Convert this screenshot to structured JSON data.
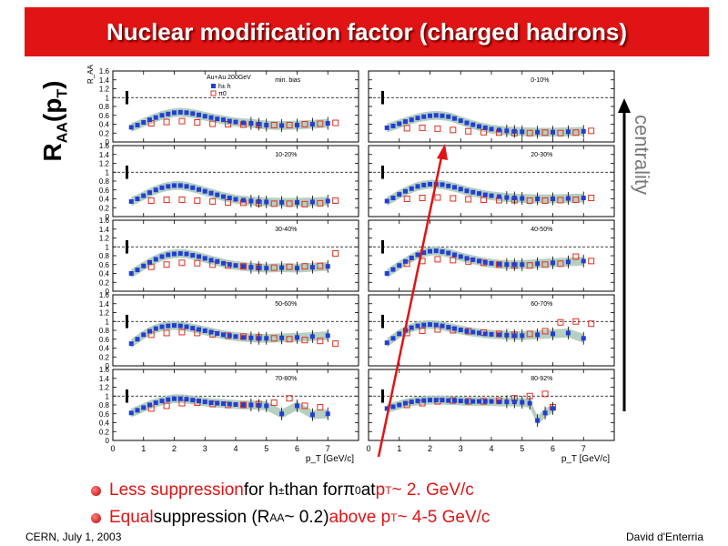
{
  "title": "Nuclear modification factor (charged hadrons)",
  "ylabel_main": {
    "base": "R",
    "sub1": "AA",
    "mid": "(p",
    "sub2": "T",
    "end": ")"
  },
  "centrality_label": "centrality",
  "bullets": {
    "b1": {
      "red1": "Less suppression",
      "t1": " for h",
      "sup": "±",
      "t2": " than for ",
      "pi": "π",
      "pisup": "0",
      "t3": " at ",
      "red2": "p",
      "red2sub": "T",
      "red3": " ~ 2. GeV/c"
    },
    "b2": {
      "red1": "Equal",
      "t1": " suppression (R",
      "sub": "AA",
      "t2": "~ 0.2) ",
      "red2": "above p",
      "red2sub": "T",
      "red3": " ~ 4-5 GeV/c"
    }
  },
  "footer": {
    "left": "CERN, July 1, 2003",
    "right": "David d'Enterria"
  },
  "colors": {
    "title_bg": "#e01414",
    "charged_hadrons": "#1f3fd6",
    "pi0": "#e03020",
    "syst_band": "#a9c7b5",
    "arrow": "#e01414"
  },
  "chart_data": {
    "type": "scatter",
    "panel_ylabel": "R_AA",
    "legend": {
      "system": "Au+Au 200GeV",
      "series1": "h±",
      "series1_suffix": " h",
      "series2": "π0"
    },
    "xlabel": "p_T [GeV/c]",
    "xlim": [
      0,
      8
    ],
    "ylim": [
      0,
      1.6
    ],
    "x_ticks": [
      "0",
      "1",
      "2",
      "3",
      "4",
      "5",
      "6",
      "7"
    ],
    "y_ticks": [
      "0",
      "0.2",
      "0.4",
      "0.6",
      "0.8",
      "1",
      "1.2",
      "1.4",
      "1.6"
    ],
    "panels": [
      {
        "label": "min. bias",
        "h": {
          "x": [
            0.6,
            0.8,
            1.0,
            1.2,
            1.4,
            1.6,
            1.8,
            2.0,
            2.2,
            2.4,
            2.6,
            2.8,
            3.0,
            3.2,
            3.4,
            3.6,
            3.8,
            4.0,
            4.25,
            4.5,
            4.75,
            5.0,
            5.5,
            6.0,
            6.5,
            7.0
          ],
          "y": [
            0.33,
            0.38,
            0.44,
            0.5,
            0.55,
            0.6,
            0.63,
            0.66,
            0.67,
            0.66,
            0.64,
            0.61,
            0.58,
            0.55,
            0.52,
            0.5,
            0.47,
            0.45,
            0.43,
            0.42,
            0.4,
            0.38,
            0.37,
            0.38,
            0.4,
            0.42
          ]
        },
        "pi0": {
          "x": [
            1.25,
            1.75,
            2.25,
            2.75,
            3.25,
            3.75,
            4.25,
            4.75,
            5.25,
            5.75,
            6.25,
            6.75,
            7.25
          ],
          "y": [
            0.42,
            0.45,
            0.47,
            0.44,
            0.41,
            0.4,
            0.39,
            0.38,
            0.38,
            0.38,
            0.4,
            0.41,
            0.43
          ]
        }
      },
      {
        "label": "0-10%",
        "h": {
          "x": [
            0.6,
            0.8,
            1.0,
            1.2,
            1.4,
            1.6,
            1.8,
            2.0,
            2.2,
            2.4,
            2.6,
            2.8,
            3.0,
            3.2,
            3.4,
            3.6,
            3.8,
            4.0,
            4.25,
            4.5,
            4.75,
            5.0,
            5.5,
            6.0,
            6.5,
            7.0
          ],
          "y": [
            0.32,
            0.36,
            0.41,
            0.46,
            0.5,
            0.54,
            0.57,
            0.59,
            0.6,
            0.59,
            0.57,
            0.53,
            0.48,
            0.43,
            0.39,
            0.35,
            0.32,
            0.29,
            0.27,
            0.25,
            0.24,
            0.23,
            0.22,
            0.22,
            0.23,
            0.24
          ]
        },
        "pi0": {
          "x": [
            1.25,
            1.75,
            2.25,
            2.75,
            3.25,
            3.75,
            4.25,
            4.75,
            5.25,
            5.75,
            6.25,
            6.75,
            7.25
          ],
          "y": [
            0.31,
            0.32,
            0.3,
            0.27,
            0.24,
            0.22,
            0.21,
            0.2,
            0.2,
            0.21,
            0.2,
            0.21,
            0.25
          ]
        }
      },
      {
        "label": "10-20%",
        "h": {
          "x": [
            0.6,
            0.8,
            1.0,
            1.2,
            1.4,
            1.6,
            1.8,
            2.0,
            2.2,
            2.4,
            2.6,
            2.8,
            3.0,
            3.2,
            3.4,
            3.6,
            3.8,
            4.0,
            4.25,
            4.5,
            4.75,
            5.0,
            5.5,
            6.0,
            6.5,
            7.0
          ],
          "y": [
            0.34,
            0.4,
            0.47,
            0.54,
            0.6,
            0.65,
            0.68,
            0.7,
            0.7,
            0.68,
            0.65,
            0.61,
            0.57,
            0.53,
            0.49,
            0.45,
            0.42,
            0.39,
            0.37,
            0.35,
            0.34,
            0.33,
            0.32,
            0.32,
            0.33,
            0.35
          ]
        },
        "pi0": {
          "x": [
            1.25,
            1.75,
            2.25,
            2.75,
            3.25,
            3.75,
            4.25,
            4.75,
            5.25,
            5.75,
            6.25,
            6.75,
            7.25
          ],
          "y": [
            0.36,
            0.38,
            0.38,
            0.36,
            0.34,
            0.32,
            0.31,
            0.3,
            0.29,
            0.29,
            0.28,
            0.3,
            0.36
          ]
        }
      },
      {
        "label": "20-30%",
        "h": {
          "x": [
            0.6,
            0.8,
            1.0,
            1.2,
            1.4,
            1.6,
            1.8,
            2.0,
            2.2,
            2.4,
            2.6,
            2.8,
            3.0,
            3.2,
            3.4,
            3.6,
            3.8,
            4.0,
            4.25,
            4.5,
            4.75,
            5.0,
            5.5,
            6.0,
            6.5,
            7.0
          ],
          "y": [
            0.35,
            0.42,
            0.5,
            0.57,
            0.63,
            0.68,
            0.71,
            0.73,
            0.73,
            0.72,
            0.69,
            0.66,
            0.62,
            0.58,
            0.55,
            0.52,
            0.49,
            0.47,
            0.45,
            0.43,
            0.42,
            0.41,
            0.4,
            0.4,
            0.41,
            0.42
          ]
        },
        "pi0": {
          "x": [
            1.25,
            1.75,
            2.25,
            2.75,
            3.25,
            3.75,
            4.25,
            4.75,
            5.25,
            5.75,
            6.25,
            6.75,
            7.25
          ],
          "y": [
            0.4,
            0.42,
            0.43,
            0.41,
            0.39,
            0.38,
            0.37,
            0.37,
            0.36,
            0.36,
            0.37,
            0.38,
            0.42
          ]
        }
      },
      {
        "label": "30-40%",
        "h": {
          "x": [
            0.6,
            0.8,
            1.0,
            1.2,
            1.4,
            1.6,
            1.8,
            2.0,
            2.2,
            2.4,
            2.6,
            2.8,
            3.0,
            3.2,
            3.4,
            3.6,
            3.8,
            4.0,
            4.25,
            4.5,
            4.75,
            5.0,
            5.5,
            6.0,
            6.5,
            7.0
          ],
          "y": [
            0.4,
            0.48,
            0.57,
            0.65,
            0.72,
            0.78,
            0.82,
            0.84,
            0.85,
            0.84,
            0.81,
            0.78,
            0.74,
            0.7,
            0.67,
            0.63,
            0.6,
            0.58,
            0.56,
            0.54,
            0.53,
            0.52,
            0.53,
            0.52,
            0.54,
            0.56
          ]
        },
        "pi0": {
          "x": [
            1.25,
            1.75,
            2.25,
            2.75,
            3.25,
            3.75,
            4.25,
            4.75,
            5.25,
            5.75,
            6.25,
            6.75,
            7.25
          ],
          "y": [
            0.55,
            0.6,
            0.64,
            0.63,
            0.6,
            0.58,
            0.56,
            0.54,
            0.53,
            0.55,
            0.56,
            0.57,
            0.85
          ]
        }
      },
      {
        "label": "40-50%",
        "h": {
          "x": [
            0.6,
            0.8,
            1.0,
            1.2,
            1.4,
            1.6,
            1.8,
            2.0,
            2.2,
            2.4,
            2.6,
            2.8,
            3.0,
            3.2,
            3.4,
            3.6,
            3.8,
            4.0,
            4.25,
            4.5,
            4.75,
            5.0,
            5.5,
            6.0,
            6.5,
            7.0
          ],
          "y": [
            0.4,
            0.49,
            0.58,
            0.67,
            0.75,
            0.82,
            0.87,
            0.9,
            0.91,
            0.89,
            0.86,
            0.82,
            0.78,
            0.74,
            0.71,
            0.68,
            0.65,
            0.63,
            0.61,
            0.6,
            0.6,
            0.6,
            0.62,
            0.64,
            0.66,
            0.68
          ]
        },
        "pi0": {
          "x": [
            1.25,
            1.75,
            2.25,
            2.75,
            3.25,
            3.75,
            4.25,
            4.75,
            5.25,
            5.75,
            6.25,
            6.75,
            7.25
          ],
          "y": [
            0.62,
            0.68,
            0.72,
            0.7,
            0.67,
            0.64,
            0.6,
            0.58,
            0.58,
            0.6,
            0.62,
            0.78,
            0.68
          ]
        }
      },
      {
        "label": "50-60%",
        "h": {
          "x": [
            0.6,
            0.8,
            1.0,
            1.2,
            1.4,
            1.6,
            1.8,
            2.0,
            2.2,
            2.4,
            2.6,
            2.8,
            3.0,
            3.2,
            3.4,
            3.6,
            3.8,
            4.0,
            4.25,
            4.5,
            4.75,
            5.0,
            5.5,
            6.0,
            6.5,
            7.0
          ],
          "y": [
            0.5,
            0.6,
            0.7,
            0.78,
            0.84,
            0.88,
            0.9,
            0.91,
            0.9,
            0.88,
            0.85,
            0.82,
            0.79,
            0.76,
            0.73,
            0.7,
            0.68,
            0.66,
            0.64,
            0.63,
            0.62,
            0.62,
            0.63,
            0.64,
            0.66,
            0.68
          ]
        },
        "pi0": {
          "x": [
            1.25,
            1.75,
            2.25,
            2.75,
            3.25,
            3.75,
            4.25,
            4.75,
            5.25,
            5.75,
            6.25,
            6.75,
            7.25
          ],
          "y": [
            0.7,
            0.74,
            0.76,
            0.74,
            0.71,
            0.68,
            0.66,
            0.64,
            0.62,
            0.6,
            0.58,
            0.56,
            0.5
          ]
        }
      },
      {
        "label": "60-70%",
        "h": {
          "x": [
            0.6,
            0.8,
            1.0,
            1.2,
            1.4,
            1.6,
            1.8,
            2.0,
            2.2,
            2.4,
            2.6,
            2.8,
            3.0,
            3.2,
            3.4,
            3.6,
            3.8,
            4.0,
            4.25,
            4.5,
            4.75,
            5.0,
            5.5,
            6.0,
            6.5,
            7.0
          ],
          "y": [
            0.52,
            0.62,
            0.72,
            0.8,
            0.86,
            0.9,
            0.92,
            0.93,
            0.92,
            0.9,
            0.87,
            0.84,
            0.81,
            0.78,
            0.76,
            0.74,
            0.72,
            0.71,
            0.7,
            0.69,
            0.68,
            0.68,
            0.7,
            0.72,
            0.74,
            0.62
          ]
        },
        "pi0": {
          "x": [
            1.25,
            1.75,
            2.25,
            2.75,
            3.25,
            3.75,
            4.25,
            4.75,
            5.25,
            5.75,
            6.25,
            6.75,
            7.25
          ],
          "y": [
            0.74,
            0.79,
            0.82,
            0.8,
            0.78,
            0.75,
            0.72,
            0.7,
            0.72,
            0.78,
            0.98,
            1.0,
            0.95
          ]
        }
      },
      {
        "label": "70-80%",
        "h": {
          "x": [
            0.6,
            0.8,
            1.0,
            1.2,
            1.4,
            1.6,
            1.8,
            2.0,
            2.2,
            2.4,
            2.6,
            2.8,
            3.0,
            3.2,
            3.4,
            3.6,
            3.8,
            4.0,
            4.25,
            4.5,
            4.75,
            5.0,
            5.5,
            6.0,
            6.5,
            7.0
          ],
          "y": [
            0.62,
            0.68,
            0.74,
            0.8,
            0.85,
            0.89,
            0.92,
            0.94,
            0.94,
            0.93,
            0.91,
            0.89,
            0.87,
            0.85,
            0.84,
            0.83,
            0.82,
            0.81,
            0.8,
            0.8,
            0.79,
            0.78,
            0.6,
            0.78,
            0.58,
            0.6
          ]
        },
        "pi0": {
          "x": [
            1.25,
            1.75,
            2.25,
            2.75,
            3.25,
            3.75,
            4.25,
            4.75,
            5.25,
            5.75,
            6.25,
            6.75
          ],
          "y": [
            0.72,
            0.78,
            0.84,
            0.85,
            0.82,
            0.8,
            0.8,
            0.82,
            0.85,
            0.95,
            0.78,
            0.75
          ]
        }
      },
      {
        "label": "80-92%",
        "h": {
          "x": [
            0.6,
            0.8,
            1.0,
            1.2,
            1.4,
            1.6,
            1.8,
            2.0,
            2.2,
            2.4,
            2.6,
            2.8,
            3.0,
            3.2,
            3.4,
            3.6,
            3.8,
            4.0,
            4.25,
            4.5,
            4.75,
            5.0,
            5.25,
            5.5,
            5.75,
            6.0
          ],
          "y": [
            0.72,
            0.76,
            0.8,
            0.84,
            0.87,
            0.89,
            0.9,
            0.91,
            0.91,
            0.91,
            0.9,
            0.9,
            0.89,
            0.88,
            0.88,
            0.88,
            0.88,
            0.88,
            0.87,
            0.87,
            0.87,
            0.86,
            0.84,
            0.45,
            0.62,
            0.72
          ]
        },
        "pi0": {
          "x": [
            1.25,
            1.75,
            2.25,
            2.75,
            3.25,
            3.75,
            4.25,
            4.75,
            5.25,
            5.75,
            6.0
          ],
          "y": [
            0.8,
            0.84,
            0.88,
            0.9,
            0.88,
            0.88,
            0.9,
            0.95,
            1.0,
            1.05,
            0.75
          ]
        }
      }
    ]
  }
}
